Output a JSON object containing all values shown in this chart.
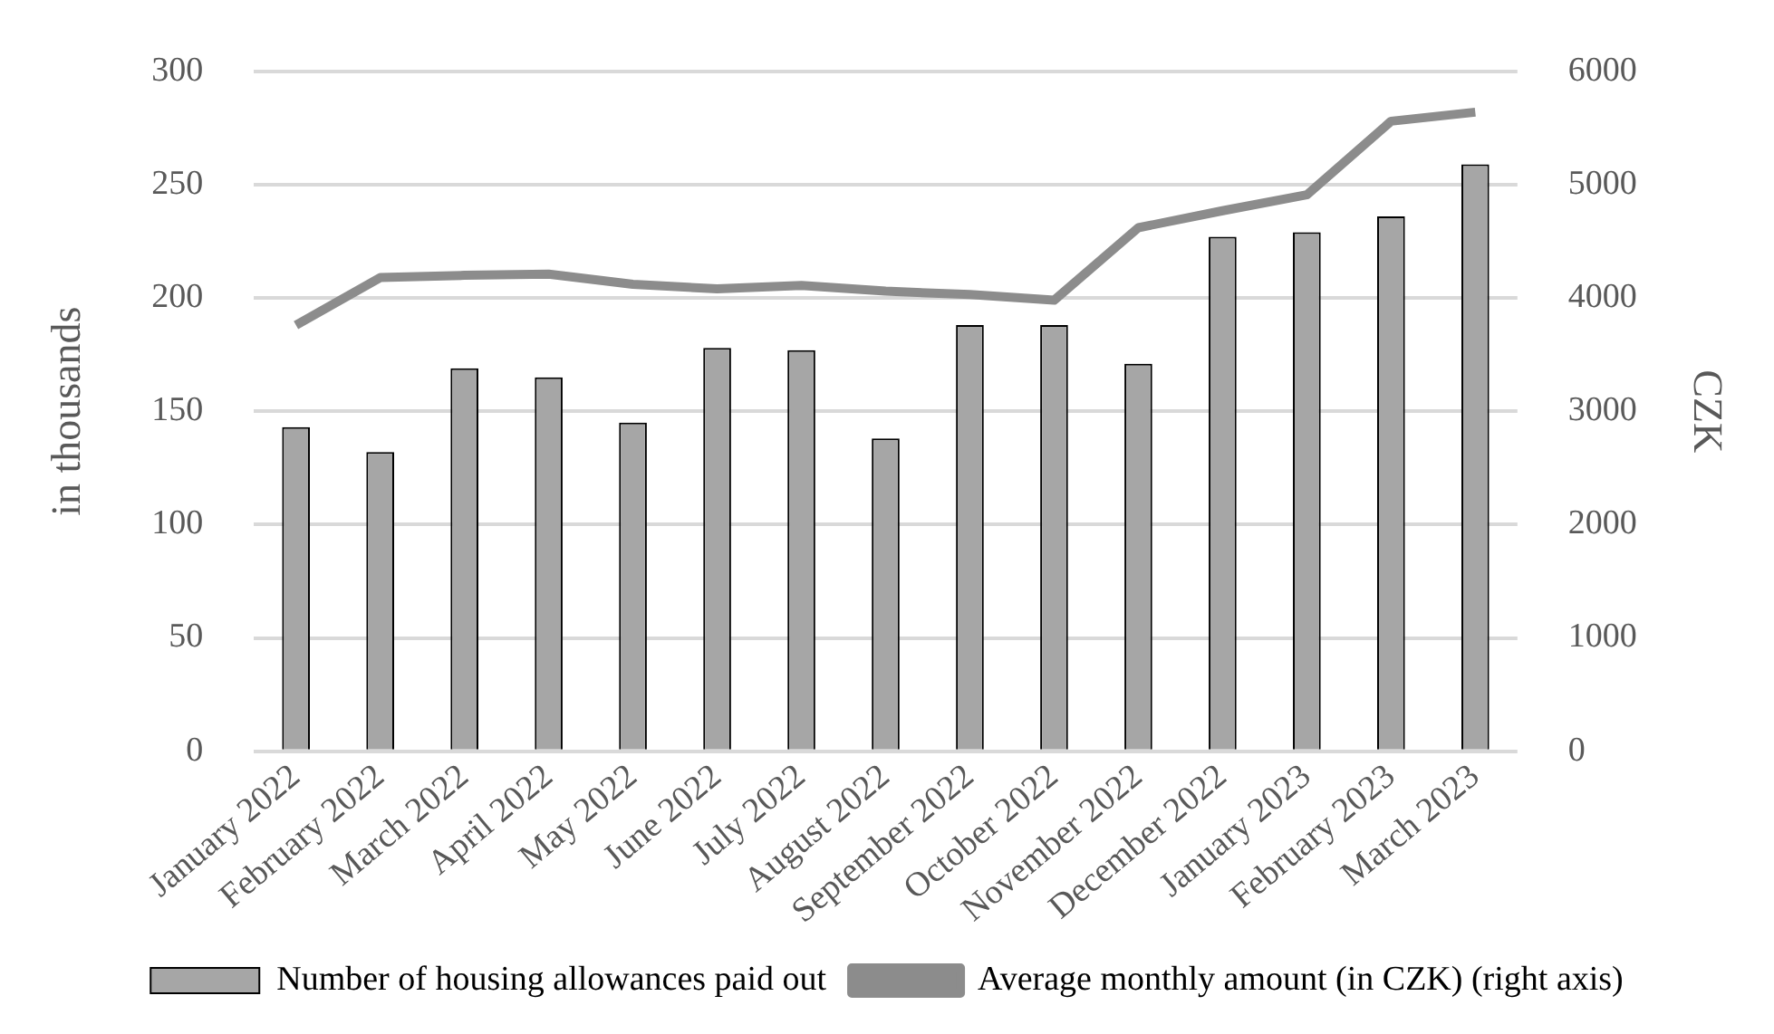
{
  "chart_data": {
    "type": "bar",
    "ylabel": "in thousands",
    "y2label": "CZK",
    "categories": [
      "January 2022",
      "February 2022",
      "March 2022",
      "April 2022",
      "May 2022",
      "June 2022",
      "July 2022",
      "August 2022",
      "September 2022",
      "October 2022",
      "November 2022",
      "December 2022",
      "January 2023",
      "February 2023",
      "March 2023"
    ],
    "series": [
      {
        "name": "Number of housing allowances paid out",
        "color": "#a6a6a6",
        "values": [
          143,
          132,
          169,
          165,
          145,
          178,
          177,
          138,
          188,
          188,
          171,
          227,
          229,
          236,
          259
        ]
      },
      {
        "name": "Average monthly amount (in CZK) (right axis)",
        "type": "line",
        "axis": "y2",
        "color": "#8c8c8c",
        "values": [
          3760,
          4180,
          4200,
          4210,
          4120,
          4080,
          4110,
          4060,
          4030,
          3980,
          4620,
          4770,
          4910,
          5560,
          5640
        ]
      }
    ],
    "ylim": [
      0,
      300
    ],
    "yticks": [
      0,
      50,
      100,
      150,
      200,
      250,
      300
    ],
    "y2lim": [
      0,
      6000
    ],
    "y2ticks": [
      0,
      1000,
      2000,
      3000,
      4000,
      5000,
      6000
    ],
    "grid": "y",
    "legend": "bottom"
  }
}
